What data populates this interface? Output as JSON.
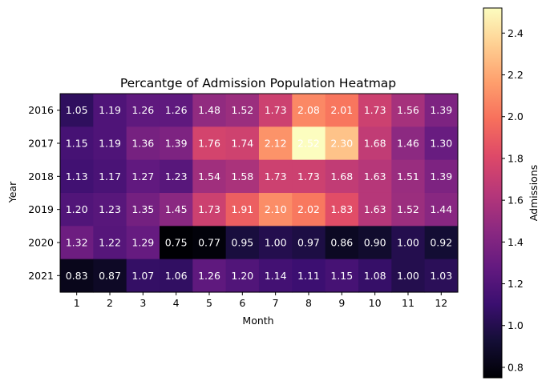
{
  "chart_data": {
    "type": "heatmap",
    "title": "Percantge of Admission Population Heatmap",
    "xlabel": "Month",
    "ylabel": "Year",
    "colorbar_label": "Admissions",
    "colormap": "magma",
    "x_categories": [
      "1",
      "2",
      "3",
      "4",
      "5",
      "6",
      "7",
      "8",
      "9",
      "10",
      "11",
      "12"
    ],
    "y_categories": [
      "2016",
      "2017",
      "2018",
      "2019",
      "2020",
      "2021"
    ],
    "values": [
      [
        1.05,
        1.19,
        1.26,
        1.26,
        1.48,
        1.52,
        1.73,
        2.08,
        2.01,
        1.73,
        1.56,
        1.39
      ],
      [
        1.15,
        1.19,
        1.36,
        1.39,
        1.76,
        1.74,
        2.12,
        2.52,
        2.3,
        1.68,
        1.46,
        1.3
      ],
      [
        1.13,
        1.17,
        1.27,
        1.23,
        1.54,
        1.58,
        1.73,
        1.73,
        1.68,
        1.63,
        1.51,
        1.39
      ],
      [
        1.2,
        1.23,
        1.35,
        1.45,
        1.73,
        1.91,
        2.1,
        2.02,
        1.83,
        1.63,
        1.52,
        1.44
      ],
      [
        1.32,
        1.22,
        1.29,
        0.75,
        0.77,
        0.95,
        1.0,
        0.97,
        0.86,
        0.9,
        1.0,
        0.92
      ],
      [
        0.83,
        0.87,
        1.07,
        1.06,
        1.26,
        1.2,
        1.14,
        1.11,
        1.15,
        1.08,
        1.0,
        1.03
      ]
    ],
    "colorbar_range": [
      0.75,
      2.52
    ],
    "colorbar_ticks": [
      "0.8",
      "1.0",
      "1.2",
      "1.4",
      "1.6",
      "1.8",
      "2.0",
      "2.2",
      "2.4"
    ],
    "value_format": "2 decimals",
    "grid": false
  }
}
